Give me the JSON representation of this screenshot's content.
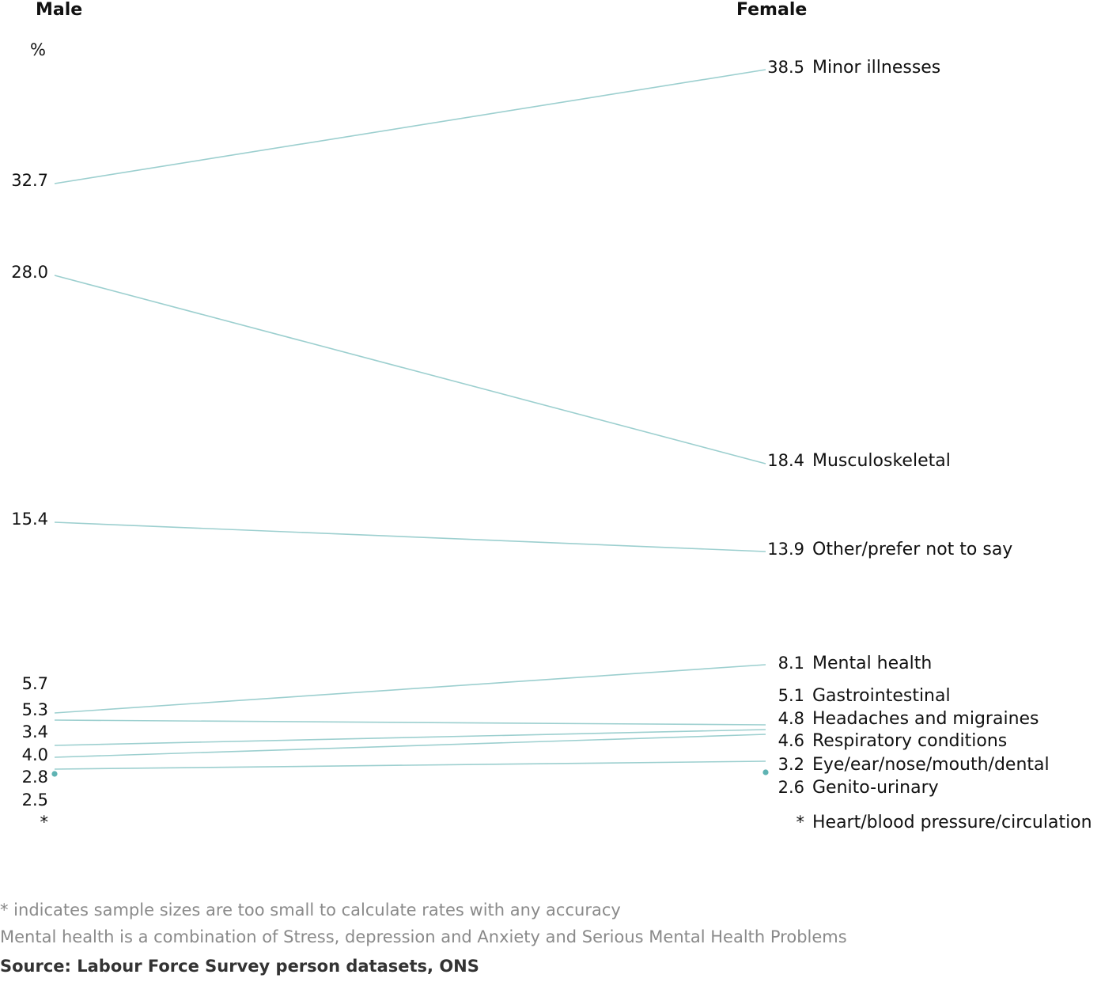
{
  "chart_data": {
    "type": "line",
    "subtype": "slope",
    "columns": [
      "Male",
      "Female"
    ],
    "unit": "%",
    "line_color": "#9ccfcf",
    "marker_color": "#5fb3b3",
    "series": [
      {
        "name": "Minor illnesses",
        "male": 32.7,
        "female": 38.5,
        "male_label": "32.7",
        "female_label": "38.5"
      },
      {
        "name": "Musculoskeletal",
        "male": 28.0,
        "female": 18.4,
        "male_label": "28.0",
        "female_label": "18.4"
      },
      {
        "name": "Other/prefer not to say",
        "male": 15.4,
        "female": 13.9,
        "male_label": "15.4",
        "female_label": "13.9"
      },
      {
        "name": "Mental health",
        "male": 5.7,
        "female": 8.1,
        "male_label": "5.7",
        "female_label": "8.1"
      },
      {
        "name": "Gastrointestinal",
        "male": 5.3,
        "female": 5.1,
        "male_label": "5.3",
        "female_label": "5.1"
      },
      {
        "name": "Headaches and migraines",
        "male": 3.4,
        "female": 4.8,
        "male_label": "3.4",
        "female_label": "4.8"
      },
      {
        "name": "Respiratory conditions",
        "male": 4.0,
        "female": 4.6,
        "male_label": "4.0",
        "female_label": "4.6"
      },
      {
        "name": "Eye/ear/nose/mouth/dental",
        "male": 2.8,
        "female": 3.2,
        "male_label": "2.8",
        "female_label": "3.2"
      },
      {
        "name": "Genito-urinary",
        "male": 2.5,
        "female": 2.6,
        "male_label": "2.5",
        "female_label": "2.6"
      },
      {
        "name": "Heart/blood pressure/circulation",
        "male": null,
        "female": null,
        "male_label": "*",
        "female_label": "*"
      }
    ]
  },
  "notes": [
    "* indicates sample sizes are too small to calculate rates with any accuracy",
    "Mental health is a combination of Stress, depression and Anxiety and Serious Mental Health Problems"
  ],
  "source": "Source: Labour Force Survey person datasets, ONS"
}
